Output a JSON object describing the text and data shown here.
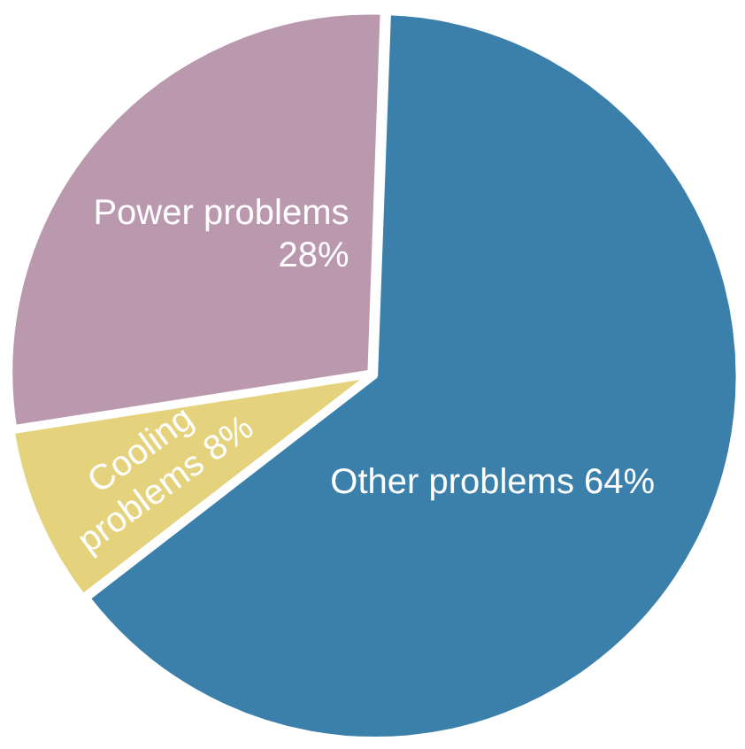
{
  "chart_data": {
    "type": "pie",
    "categories": [
      "Other problems",
      "Cooling problems",
      "Power problems"
    ],
    "values": [
      64,
      8,
      28
    ],
    "value_labels": [
      "64%",
      "8%",
      "28%"
    ],
    "colors": [
      "#3a80ab",
      "#e5d27c",
      "#ba98ae"
    ],
    "legend": false
  }
}
